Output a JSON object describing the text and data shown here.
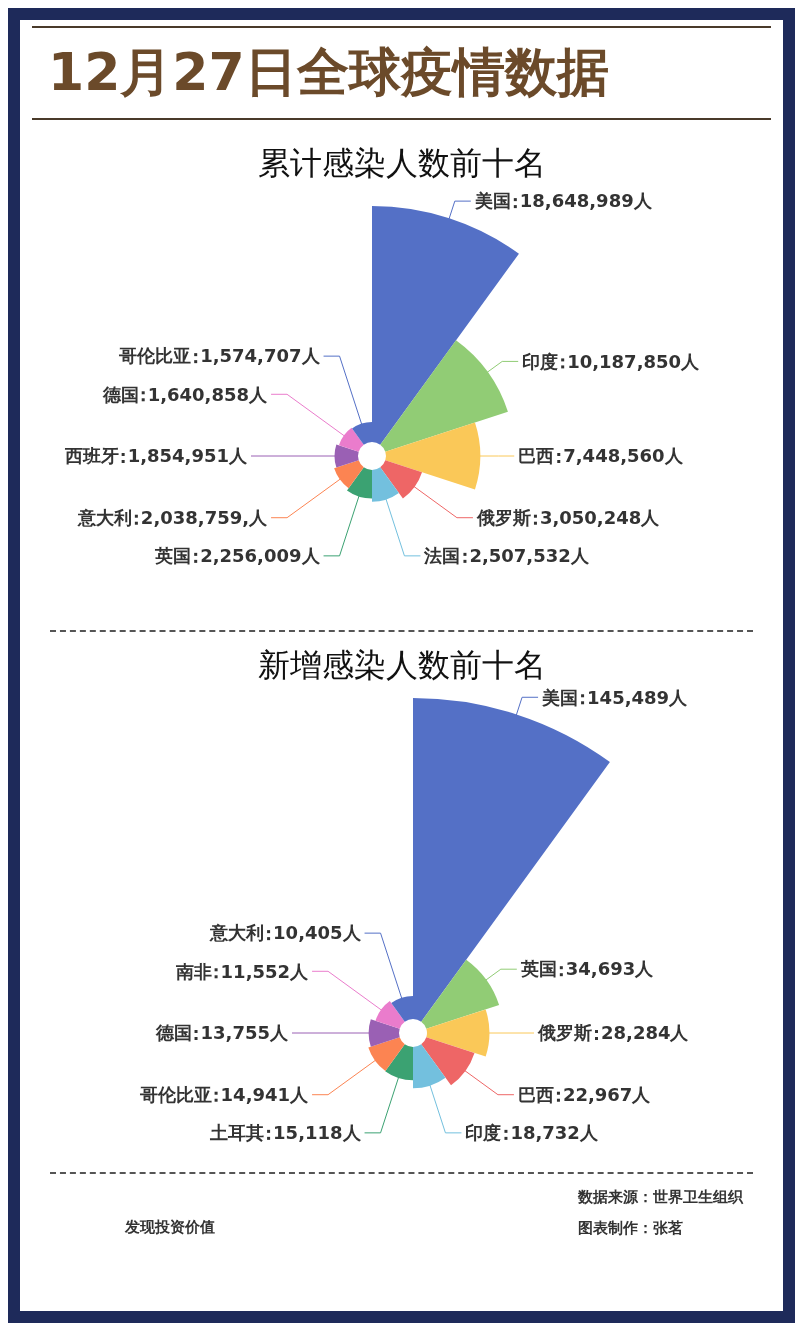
{
  "chart_data": [
    {
      "type": "other",
      "title": "12月27日全球疫情数据",
      "subtitle": "累计感染人数前十名",
      "categories": [
        "美国",
        "印度",
        "巴西",
        "俄罗斯",
        "法国",
        "英国",
        "意大利",
        "西班牙",
        "德国",
        "哥伦比亚"
      ],
      "values": [
        18648989,
        10187850,
        7448560,
        3050248,
        2507532,
        2256009,
        2038759,
        1854951,
        1640858,
        1574707
      ],
      "value_labels": [
        "18,648,989人",
        "10,187,850人",
        "7,448,560人",
        "3,050,248人",
        "2,507,532人",
        "2,256,009人",
        "2,038,759,人",
        "1,854,951人",
        "1,640,858人",
        "1,574,707人"
      ],
      "colors": [
        "#5470c6",
        "#91cc75",
        "#fac858",
        "#ee6666",
        "#73c0de",
        "#3ba272",
        "#fc8452",
        "#9a60b4",
        "#ea7ccc",
        "#5470c6"
      ]
    },
    {
      "type": "other",
      "title": "新增感染人数前十名",
      "categories": [
        "美国",
        "英国",
        "俄罗斯",
        "巴西",
        "印度",
        "土耳其",
        "哥伦比亚",
        "德国",
        "南非",
        "意大利"
      ],
      "values": [
        145489,
        34693,
        28284,
        22967,
        18732,
        15118,
        14941,
        13755,
        11552,
        10405
      ],
      "value_labels": [
        "145,489人",
        "34,693人",
        "28,284人",
        "22,967人",
        "18,732人",
        "15,118人",
        "14,941人",
        "13,755人",
        "11,552人",
        "10,405人"
      ],
      "colors": [
        "#5470c6",
        "#91cc75",
        "#fac858",
        "#ee6666",
        "#73c0de",
        "#3ba272",
        "#fc8452",
        "#9a60b4",
        "#ea7ccc",
        "#5470c6"
      ],
      "annotations": [
        "发现投资价值",
        "数据来源：世界卫生组织",
        "图表制作：张茗"
      ]
    }
  ]
}
